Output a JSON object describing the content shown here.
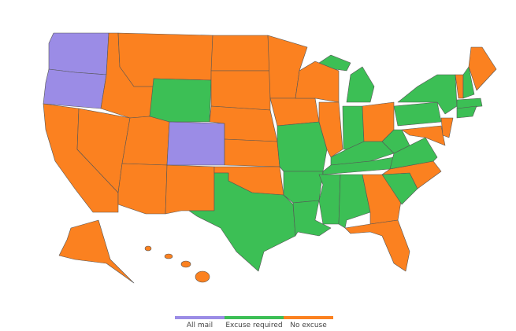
{
  "legend": {
    "items": [
      {
        "label": "All mail",
        "color": "#9b8ce6"
      },
      {
        "label": "Excuse required",
        "color": "#3cbf55"
      },
      {
        "label": "No excuse",
        "color": "#fb8120"
      }
    ]
  }
}
